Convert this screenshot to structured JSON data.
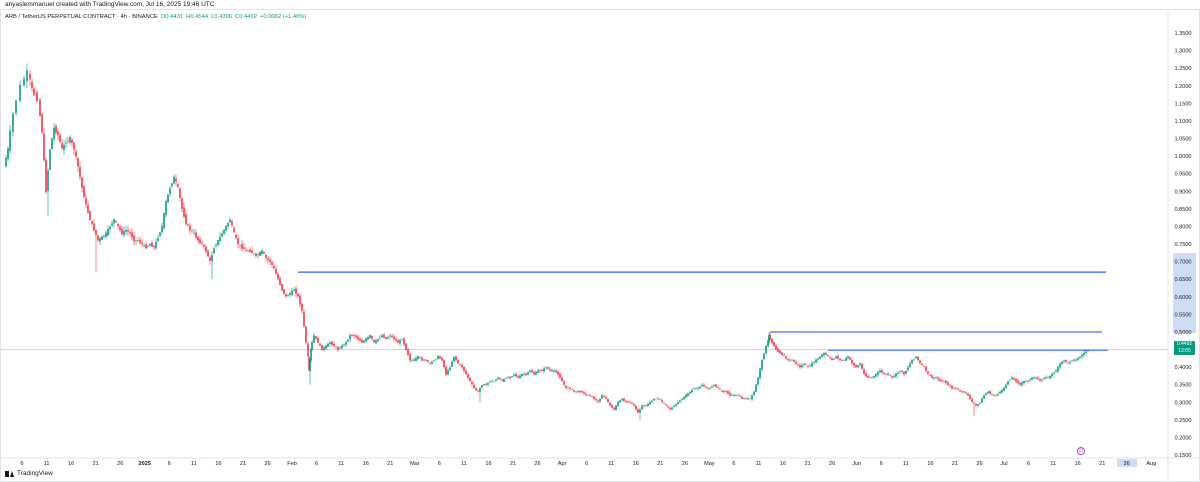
{
  "header": {
    "created_by": "anyaslemmanuel created with TradingView.com, Jul 16, 2025 19:46 UTC"
  },
  "legend": {
    "symbol": "ARB / TetherUS PERPETUAL CONTRACT · 4h · BINANCE",
    "open": "O0.4431",
    "high": "H0.4544",
    "low": "L0.4396",
    "close": "C0.4492",
    "change": "+0.0062 (+1.40%)"
  },
  "price_tag": {
    "price": "0.4492",
    "countdown": "13:05"
  },
  "footer": {
    "brand": "TradingView"
  },
  "colors": {
    "up": "#089981",
    "down": "#f23645",
    "hline": "#2962ff",
    "grid": "#f0f3fa",
    "axis_text": "#131722",
    "highlight": "#cfdcf5"
  },
  "icons": {
    "event": "dividend-icon"
  },
  "chart_data": {
    "type": "candlestick",
    "title": "ARB / TetherUS PERPETUAL CONTRACT · 4h · BINANCE",
    "y_ticks": [
      "1.3500",
      "1.3000",
      "1.2500",
      "1.2000",
      "1.1500",
      "1.1000",
      "1.0500",
      "1.0000",
      "0.9500",
      "0.9000",
      "0.8500",
      "0.8000",
      "0.7500",
      "0.7000",
      "0.6500",
      "0.6000",
      "0.5500",
      "0.5000",
      "0.4500",
      "0.4000",
      "0.3500",
      "0.3000",
      "0.2500",
      "0.2000",
      "0.1500"
    ],
    "ylim": [
      0.15,
      1.35
    ],
    "x_ticks": [
      "6",
      "11",
      "16",
      "21",
      "26",
      "2025",
      "6",
      "11",
      "16",
      "21",
      "26",
      "Feb",
      "6",
      "11",
      "16",
      "21",
      "Mar",
      "6",
      "11",
      "16",
      "21",
      "26",
      "Apr",
      "6",
      "11",
      "16",
      "21",
      "26",
      "May",
      "6",
      "11",
      "16",
      "21",
      "26",
      "Jun",
      "6",
      "11",
      "16",
      "21",
      "26",
      "Jul",
      "6",
      "11",
      "16",
      "21",
      "26",
      "Aug"
    ],
    "highlighted_x_ticks": [
      "26"
    ],
    "price_path": [
      [
        0,
        0.97
      ],
      [
        4,
        1.02
      ],
      [
        10,
        1.12
      ],
      [
        18,
        1.2
      ],
      [
        24,
        1.24
      ],
      [
        28,
        1.19
      ],
      [
        34,
        1.16
      ],
      [
        38,
        1.07
      ],
      [
        42,
        0.9
      ],
      [
        46,
        1.02
      ],
      [
        50,
        1.08
      ],
      [
        54,
        1.06
      ],
      [
        58,
        1.02
      ],
      [
        62,
        1.04
      ],
      [
        66,
        1.05
      ],
      [
        70,
        1.02
      ],
      [
        74,
        0.97
      ],
      [
        78,
        0.91
      ],
      [
        82,
        0.86
      ],
      [
        86,
        0.82
      ],
      [
        90,
        0.79
      ],
      [
        94,
        0.76
      ],
      [
        98,
        0.77
      ],
      [
        102,
        0.78
      ],
      [
        106,
        0.8
      ],
      [
        110,
        0.82
      ],
      [
        114,
        0.8
      ],
      [
        118,
        0.78
      ],
      [
        122,
        0.79
      ],
      [
        126,
        0.78
      ],
      [
        130,
        0.76
      ],
      [
        134,
        0.76
      ],
      [
        138,
        0.75
      ],
      [
        142,
        0.74
      ],
      [
        146,
        0.75
      ],
      [
        150,
        0.74
      ],
      [
        154,
        0.77
      ],
      [
        158,
        0.8
      ],
      [
        162,
        0.87
      ],
      [
        166,
        0.91
      ],
      [
        170,
        0.94
      ],
      [
        174,
        0.91
      ],
      [
        178,
        0.85
      ],
      [
        182,
        0.81
      ],
      [
        186,
        0.79
      ],
      [
        190,
        0.78
      ],
      [
        194,
        0.76
      ],
      [
        198,
        0.75
      ],
      [
        202,
        0.73
      ],
      [
        206,
        0.7
      ],
      [
        210,
        0.74
      ],
      [
        214,
        0.76
      ],
      [
        218,
        0.78
      ],
      [
        222,
        0.8
      ],
      [
        226,
        0.82
      ],
      [
        230,
        0.78
      ],
      [
        234,
        0.75
      ],
      [
        238,
        0.74
      ],
      [
        242,
        0.73
      ],
      [
        246,
        0.73
      ],
      [
        250,
        0.72
      ],
      [
        254,
        0.72
      ],
      [
        258,
        0.73
      ],
      [
        262,
        0.71
      ],
      [
        266,
        0.7
      ],
      [
        270,
        0.68
      ],
      [
        274,
        0.65
      ],
      [
        278,
        0.62
      ],
      [
        282,
        0.6
      ],
      [
        286,
        0.61
      ],
      [
        290,
        0.62
      ],
      [
        294,
        0.6
      ],
      [
        298,
        0.56
      ],
      [
        302,
        0.47
      ],
      [
        304,
        0.39
      ],
      [
        306,
        0.45
      ],
      [
        310,
        0.49
      ],
      [
        314,
        0.47
      ],
      [
        318,
        0.45
      ],
      [
        322,
        0.46
      ],
      [
        326,
        0.47
      ],
      [
        330,
        0.46
      ],
      [
        334,
        0.45
      ],
      [
        338,
        0.46
      ],
      [
        342,
        0.47
      ],
      [
        346,
        0.49
      ],
      [
        350,
        0.49
      ],
      [
        354,
        0.48
      ],
      [
        358,
        0.47
      ],
      [
        362,
        0.48
      ],
      [
        366,
        0.49
      ],
      [
        370,
        0.47
      ],
      [
        374,
        0.48
      ],
      [
        378,
        0.49
      ],
      [
        382,
        0.48
      ],
      [
        386,
        0.49
      ],
      [
        390,
        0.48
      ],
      [
        394,
        0.47
      ],
      [
        398,
        0.48
      ],
      [
        402,
        0.45
      ],
      [
        406,
        0.42
      ],
      [
        410,
        0.42
      ],
      [
        414,
        0.43
      ],
      [
        418,
        0.42
      ],
      [
        422,
        0.42
      ],
      [
        426,
        0.41
      ],
      [
        430,
        0.42
      ],
      [
        434,
        0.43
      ],
      [
        438,
        0.42
      ],
      [
        442,
        0.38
      ],
      [
        446,
        0.4
      ],
      [
        450,
        0.43
      ],
      [
        454,
        0.41
      ],
      [
        458,
        0.4
      ],
      [
        462,
        0.38
      ],
      [
        466,
        0.36
      ],
      [
        470,
        0.34
      ],
      [
        474,
        0.33
      ],
      [
        478,
        0.35
      ],
      [
        482,
        0.35
      ],
      [
        486,
        0.36
      ],
      [
        490,
        0.36
      ],
      [
        494,
        0.37
      ],
      [
        498,
        0.36
      ],
      [
        502,
        0.37
      ],
      [
        506,
        0.37
      ],
      [
        510,
        0.38
      ],
      [
        514,
        0.37
      ],
      [
        518,
        0.38
      ],
      [
        522,
        0.38
      ],
      [
        526,
        0.39
      ],
      [
        530,
        0.38
      ],
      [
        534,
        0.39
      ],
      [
        538,
        0.39
      ],
      [
        542,
        0.4
      ],
      [
        546,
        0.39
      ],
      [
        550,
        0.39
      ],
      [
        554,
        0.38
      ],
      [
        558,
        0.36
      ],
      [
        562,
        0.34
      ],
      [
        566,
        0.34
      ],
      [
        570,
        0.33
      ],
      [
        574,
        0.33
      ],
      [
        578,
        0.33
      ],
      [
        582,
        0.32
      ],
      [
        586,
        0.32
      ],
      [
        590,
        0.31
      ],
      [
        594,
        0.3
      ],
      [
        598,
        0.32
      ],
      [
        602,
        0.31
      ],
      [
        606,
        0.29
      ],
      [
        610,
        0.28
      ],
      [
        614,
        0.3
      ],
      [
        618,
        0.31
      ],
      [
        622,
        0.3
      ],
      [
        626,
        0.3
      ],
      [
        630,
        0.29
      ],
      [
        634,
        0.27
      ],
      [
        638,
        0.29
      ],
      [
        642,
        0.29
      ],
      [
        646,
        0.3
      ],
      [
        650,
        0.31
      ],
      [
        654,
        0.31
      ],
      [
        658,
        0.3
      ],
      [
        662,
        0.29
      ],
      [
        666,
        0.28
      ],
      [
        670,
        0.29
      ],
      [
        674,
        0.3
      ],
      [
        678,
        0.31
      ],
      [
        682,
        0.32
      ],
      [
        686,
        0.33
      ],
      [
        690,
        0.34
      ],
      [
        694,
        0.34
      ],
      [
        698,
        0.35
      ],
      [
        702,
        0.34
      ],
      [
        706,
        0.34
      ],
      [
        710,
        0.35
      ],
      [
        714,
        0.34
      ],
      [
        718,
        0.33
      ],
      [
        722,
        0.33
      ],
      [
        726,
        0.32
      ],
      [
        730,
        0.32
      ],
      [
        734,
        0.32
      ],
      [
        738,
        0.31
      ],
      [
        742,
        0.31
      ],
      [
        746,
        0.31
      ],
      [
        750,
        0.33
      ],
      [
        754,
        0.37
      ],
      [
        758,
        0.42
      ],
      [
        762,
        0.46
      ],
      [
        764,
        0.49
      ],
      [
        768,
        0.47
      ],
      [
        772,
        0.45
      ],
      [
        776,
        0.44
      ],
      [
        780,
        0.43
      ],
      [
        784,
        0.42
      ],
      [
        788,
        0.42
      ],
      [
        792,
        0.41
      ],
      [
        796,
        0.4
      ],
      [
        800,
        0.41
      ],
      [
        804,
        0.4
      ],
      [
        808,
        0.41
      ],
      [
        812,
        0.42
      ],
      [
        816,
        0.43
      ],
      [
        820,
        0.44
      ],
      [
        824,
        0.43
      ],
      [
        828,
        0.42
      ],
      [
        832,
        0.43
      ],
      [
        836,
        0.42
      ],
      [
        840,
        0.42
      ],
      [
        844,
        0.43
      ],
      [
        848,
        0.41
      ],
      [
        852,
        0.4
      ],
      [
        856,
        0.41
      ],
      [
        860,
        0.38
      ],
      [
        864,
        0.37
      ],
      [
        868,
        0.37
      ],
      [
        872,
        0.38
      ],
      [
        876,
        0.39
      ],
      [
        880,
        0.38
      ],
      [
        884,
        0.38
      ],
      [
        888,
        0.37
      ],
      [
        892,
        0.38
      ],
      [
        896,
        0.39
      ],
      [
        900,
        0.38
      ],
      [
        904,
        0.4
      ],
      [
        908,
        0.42
      ],
      [
        912,
        0.43
      ],
      [
        916,
        0.41
      ],
      [
        920,
        0.4
      ],
      [
        924,
        0.38
      ],
      [
        928,
        0.37
      ],
      [
        932,
        0.37
      ],
      [
        936,
        0.36
      ],
      [
        940,
        0.36
      ],
      [
        944,
        0.35
      ],
      [
        948,
        0.34
      ],
      [
        952,
        0.34
      ],
      [
        956,
        0.33
      ],
      [
        960,
        0.33
      ],
      [
        964,
        0.32
      ],
      [
        968,
        0.3
      ],
      [
        972,
        0.29
      ],
      [
        976,
        0.3
      ],
      [
        980,
        0.32
      ],
      [
        984,
        0.33
      ],
      [
        988,
        0.32
      ],
      [
        992,
        0.32
      ],
      [
        996,
        0.33
      ],
      [
        1000,
        0.34
      ],
      [
        1004,
        0.36
      ],
      [
        1008,
        0.37
      ],
      [
        1012,
        0.36
      ],
      [
        1016,
        0.35
      ],
      [
        1020,
        0.36
      ],
      [
        1024,
        0.36
      ],
      [
        1028,
        0.37
      ],
      [
        1032,
        0.37
      ],
      [
        1036,
        0.36
      ],
      [
        1040,
        0.37
      ],
      [
        1044,
        0.37
      ],
      [
        1048,
        0.38
      ],
      [
        1052,
        0.39
      ],
      [
        1056,
        0.41
      ],
      [
        1060,
        0.42
      ],
      [
        1064,
        0.41
      ],
      [
        1068,
        0.42
      ],
      [
        1072,
        0.42
      ],
      [
        1076,
        0.43
      ],
      [
        1080,
        0.44
      ],
      [
        1084,
        0.449
      ]
    ],
    "horizontal_levels": [
      {
        "price": 0.67,
        "from_index_x": 292,
        "to_index_x": 1100
      },
      {
        "price": 0.5,
        "from_index_x": 764,
        "to_index_x": 1096
      },
      {
        "price": 0.448,
        "from_index_x": 822,
        "to_index_x": 1102
      }
    ],
    "last_price": 0.4492,
    "grid": true
  }
}
